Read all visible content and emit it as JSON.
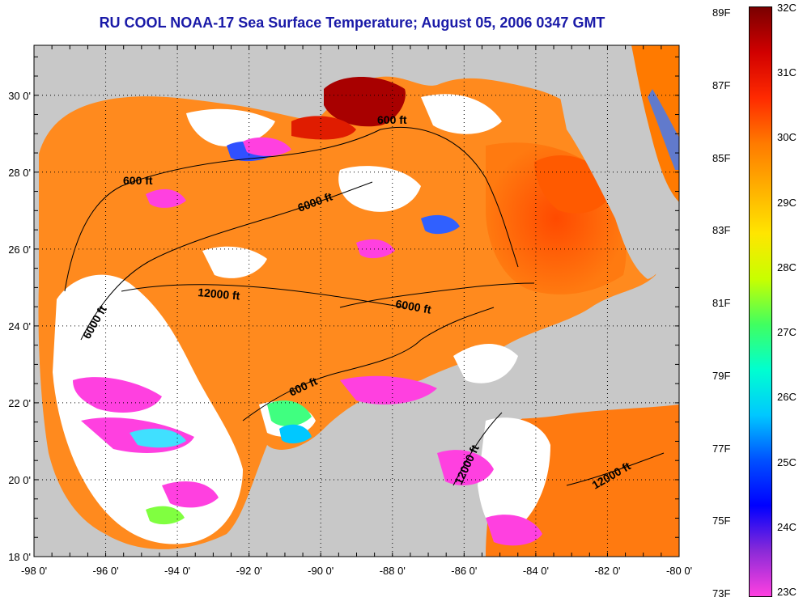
{
  "title": "RU COOL  NOAA-17  Sea Surface Temperature;  August 05, 2006 0347 GMT",
  "axes": {
    "x_ticks": [
      "-98 0'",
      "-96 0'",
      "-94 0'",
      "-92 0'",
      "-90 0'",
      "-88 0'",
      "-86 0'",
      "-84 0'",
      "-82 0'",
      "-80 0'"
    ],
    "y_ticks": [
      "30 0'",
      "28 0'",
      "26 0'",
      "24 0'",
      "22 0'",
      "20 0'",
      "18 0'"
    ],
    "lon_range": [
      -98,
      -80
    ],
    "lat_range": [
      18,
      31.3
    ],
    "grid": "dotted"
  },
  "contours": [
    {
      "label": "600 ft"
    },
    {
      "label": "600 ft"
    },
    {
      "label": "600 ft"
    },
    {
      "label": "6000 ft"
    },
    {
      "label": "6000 ft"
    },
    {
      "label": "6000 ft"
    },
    {
      "label": "12000 ft"
    },
    {
      "label": "12000 ft"
    },
    {
      "label": "12000 ft"
    }
  ],
  "colorbar": {
    "fahrenheit": [
      "89F",
      "87F",
      "85F",
      "83F",
      "81F",
      "79F",
      "77F",
      "75F",
      "73F"
    ],
    "celsius": [
      "32C",
      "31C",
      "30C",
      "29C",
      "28C",
      "27C",
      "26C",
      "25C",
      "24C",
      "23C"
    ],
    "colors": [
      "#7a0000",
      "#d10000",
      "#ff2a00",
      "#ff7a00",
      "#ffb000",
      "#ffe600",
      "#c8ff00",
      "#40ff60",
      "#00ffd0",
      "#00c8ff",
      "#0050ff",
      "#0000ff",
      "#8a2ad8",
      "#ff40e0"
    ]
  },
  "colors": {
    "land": "#c8c8c8",
    "cloud": "#ffffff",
    "title": "#1a1aa8",
    "contour": "#000000"
  }
}
